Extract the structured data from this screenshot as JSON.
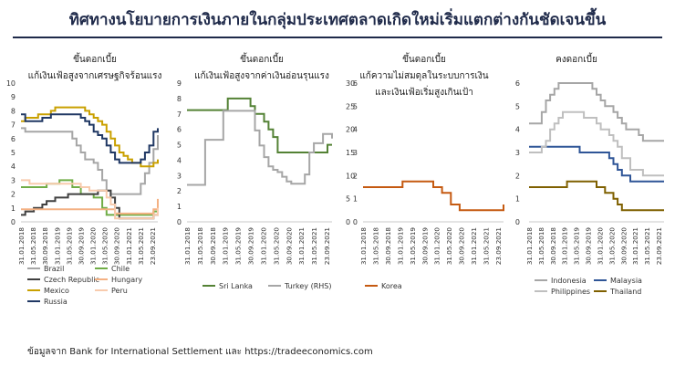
{
  "title": "ทิศทางนโยบายการเงินภายในกลุ่มประเทศตลาดเกิดใหม่เริ่มแตกต่างกันชัดเจนขึ้น",
  "source": "ข้อมูลจาก Bank for International Settlement และ https://tradeeconomics.com",
  "chart_data": [
    {
      "type": "line",
      "title": [
        "ขึ้นดอกเบี้ย",
        "แก้เงินเฟ้อสูงจากเศรษฐกิจร้อนแรง"
      ],
      "x_ticks": [
        "31.01.2018",
        "31.05.2018",
        "30.09.2018",
        "31.01.2019",
        "31.05.2019",
        "30.09.2019",
        "31.01.2020",
        "31.05.2020",
        "30.09.2020",
        "31.01.2021",
        "31.05.2021",
        "23.09.2021"
      ],
      "ylim": [
        0,
        10
      ],
      "yticks": [
        0,
        1,
        2,
        3,
        4,
        5,
        6,
        7,
        8,
        9,
        10
      ],
      "series": [
        {
          "name": "Brazil",
          "color": "#a6a6a6",
          "values": [
            6.75,
            6.5,
            6.5,
            6.5,
            6.5,
            6.5,
            6.5,
            6.5,
            6.5,
            6.5,
            6.5,
            6.5,
            6.0,
            5.5,
            5.0,
            4.5,
            4.5,
            4.25,
            3.75,
            3.0,
            2.25,
            2.0,
            2.0,
            2.0,
            2.0,
            2.0,
            2.0,
            2.0,
            2.75,
            3.5,
            4.25,
            5.25,
            6.25
          ]
        },
        {
          "name": "Chile",
          "color": "#70ad47",
          "values": [
            2.5,
            2.5,
            2.5,
            2.5,
            2.5,
            2.5,
            2.75,
            2.75,
            2.75,
            3.0,
            3.0,
            3.0,
            2.5,
            2.5,
            2.0,
            2.0,
            2.0,
            1.75,
            1.75,
            1.0,
            0.5,
            0.5,
            0.5,
            0.5,
            0.5,
            0.5,
            0.5,
            0.5,
            0.5,
            0.5,
            0.5,
            0.75,
            1.5
          ]
        },
        {
          "name": "Czech Republic",
          "color": "#404040",
          "values": [
            0.5,
            0.75,
            0.75,
            1.0,
            1.0,
            1.25,
            1.5,
            1.5,
            1.75,
            1.75,
            1.75,
            2.0,
            2.0,
            2.0,
            2.0,
            2.0,
            2.0,
            2.0,
            2.25,
            2.25,
            2.25,
            1.75,
            1.0,
            0.25,
            0.25,
            0.25,
            0.25,
            0.25,
            0.25,
            0.25,
            0.25,
            0.5,
            0.75
          ]
        },
        {
          "name": "Hungary",
          "color": "#f4b183",
          "values": [
            0.9,
            0.9,
            0.9,
            0.9,
            0.9,
            0.9,
            0.9,
            0.9,
            0.9,
            0.9,
            0.9,
            0.9,
            0.9,
            0.9,
            0.9,
            0.9,
            0.9,
            0.9,
            0.9,
            0.9,
            0.9,
            0.9,
            0.6,
            0.6,
            0.6,
            0.6,
            0.6,
            0.6,
            0.6,
            0.6,
            0.6,
            0.9,
            1.65
          ]
        },
        {
          "name": "Mexico",
          "color": "#c9a000",
          "values": [
            7.25,
            7.5,
            7.5,
            7.5,
            7.75,
            7.75,
            7.75,
            8.0,
            8.25,
            8.25,
            8.25,
            8.25,
            8.25,
            8.25,
            8.25,
            8.0,
            7.75,
            7.5,
            7.25,
            7.0,
            6.5,
            6.0,
            5.5,
            5.0,
            4.75,
            4.5,
            4.25,
            4.25,
            4.0,
            4.0,
            4.0,
            4.25,
            4.5
          ]
        },
        {
          "name": "Peru",
          "color": "#f8cbad",
          "values": [
            3.0,
            3.0,
            2.75,
            2.75,
            2.75,
            2.75,
            2.75,
            2.75,
            2.75,
            2.75,
            2.75,
            2.75,
            2.75,
            2.75,
            2.5,
            2.5,
            2.25,
            2.25,
            2.25,
            2.25,
            1.75,
            1.25,
            0.25,
            0.25,
            0.25,
            0.25,
            0.25,
            0.25,
            0.25,
            0.25,
            0.25,
            0.5,
            1.0
          ]
        },
        {
          "name": "Russia",
          "color": "#203864",
          "values": [
            7.75,
            7.25,
            7.25,
            7.25,
            7.25,
            7.5,
            7.5,
            7.75,
            7.75,
            7.75,
            7.75,
            7.75,
            7.75,
            7.75,
            7.5,
            7.25,
            7.0,
            6.5,
            6.25,
            6.0,
            5.5,
            5.0,
            4.5,
            4.25,
            4.25,
            4.25,
            4.25,
            4.25,
            4.5,
            5.0,
            5.5,
            6.5,
            6.75
          ]
        }
      ],
      "legend_position": "bottom"
    },
    {
      "type": "line",
      "title": [
        "ขึ้นดอกเบี้ย",
        "แก้เงินเฟ้อสูงจากค่าเงินอ่อนรุนแรง"
      ],
      "x_ticks": [
        "31.01.2018",
        "31.05.2018",
        "30.09.2018",
        "31.01.2019",
        "31.05.2019",
        "30.09.2019",
        "31.01.2020",
        "31.05.2020",
        "30.09.2020",
        "31.01.2021",
        "31.05.2021",
        "23.09.2021"
      ],
      "ylim_left": [
        0,
        9
      ],
      "yticks_left": [
        0,
        1,
        2,
        3,
        4,
        5,
        6,
        7,
        8,
        9
      ],
      "ylim_right": [
        0,
        30
      ],
      "yticks_right": [
        0,
        5,
        10,
        15,
        20,
        25,
        30
      ],
      "series": [
        {
          "name": "Sri Lanka",
          "color": "#548235",
          "axis": "left",
          "values": [
            7.25,
            7.25,
            7.25,
            7.25,
            7.25,
            7.25,
            7.25,
            7.25,
            7.25,
            8.0,
            8.0,
            8.0,
            8.0,
            8.0,
            7.5,
            7.0,
            7.0,
            6.5,
            6.0,
            5.5,
            4.5,
            4.5,
            4.5,
            4.5,
            4.5,
            4.5,
            4.5,
            4.5,
            4.5,
            4.5,
            4.5,
            5.0,
            5.0
          ]
        },
        {
          "name": "Turkey (RHS)",
          "color": "#a6a6a6",
          "axis": "right",
          "values": [
            8.0,
            8.0,
            8.0,
            8.0,
            17.75,
            17.75,
            17.75,
            17.75,
            24.0,
            24.0,
            24.0,
            24.0,
            24.0,
            24.0,
            24.0,
            19.75,
            16.5,
            14.0,
            12.0,
            11.25,
            10.75,
            9.75,
            8.75,
            8.25,
            8.25,
            8.25,
            10.25,
            15.0,
            17.0,
            17.0,
            19.0,
            19.0,
            18.0
          ]
        }
      ],
      "legend_position": "bottom"
    },
    {
      "type": "line",
      "title": [
        "ขึ้นดอกเบี้ย",
        "แก้ความไม่สมดุลในระบบการเงิน",
        "และเงินเฟ้อเริ่มสูงเกินเป้า"
      ],
      "x_ticks": [
        "31.01.2018",
        "31.05.2018",
        "30.09.2018",
        "31.01.2019",
        "31.05.2019",
        "30.09.2019",
        "31.01.2020",
        "31.05.2020",
        "30.09.2020",
        "31.01.2021",
        "31.05.2021",
        "23.09.2021"
      ],
      "ylim": [
        0,
        6
      ],
      "yticks": [
        0,
        1,
        2,
        3,
        4,
        5,
        6
      ],
      "series": [
        {
          "name": "Korea",
          "color": "#c55a11",
          "values": [
            1.5,
            1.5,
            1.5,
            1.5,
            1.5,
            1.5,
            1.5,
            1.5,
            1.5,
            1.75,
            1.75,
            1.75,
            1.75,
            1.75,
            1.75,
            1.75,
            1.5,
            1.5,
            1.25,
            1.25,
            0.75,
            0.75,
            0.5,
            0.5,
            0.5,
            0.5,
            0.5,
            0.5,
            0.5,
            0.5,
            0.5,
            0.5,
            0.75
          ]
        }
      ],
      "legend_position": "bottom"
    },
    {
      "type": "line",
      "title": [
        "คงดอกเบี้ย"
      ],
      "x_ticks": [
        "31.01.2018",
        "31.05.2018",
        "30.09.2018",
        "31.01.2019",
        "31.05.2019",
        "30.09.2019",
        "31.01.2020",
        "31.05.2020",
        "30.09.2020",
        "31.01.2021",
        "31.05.2021",
        "23.09.2021"
      ],
      "ylim": [
        0,
        6
      ],
      "yticks": [
        0,
        1,
        2,
        3,
        4,
        5,
        6
      ],
      "series": [
        {
          "name": "Indonesia",
          "color": "#a6a6a6",
          "values": [
            4.25,
            4.25,
            4.25,
            4.75,
            5.25,
            5.5,
            5.75,
            6.0,
            6.0,
            6.0,
            6.0,
            6.0,
            6.0,
            6.0,
            6.0,
            5.75,
            5.5,
            5.25,
            5.0,
            5.0,
            4.75,
            4.5,
            4.25,
            4.0,
            4.0,
            4.0,
            3.75,
            3.5,
            3.5,
            3.5,
            3.5,
            3.5,
            3.5
          ]
        },
        {
          "name": "Malaysia",
          "color": "#2f5597",
          "values": [
            3.25,
            3.25,
            3.25,
            3.25,
            3.25,
            3.25,
            3.25,
            3.25,
            3.25,
            3.25,
            3.25,
            3.25,
            3.0,
            3.0,
            3.0,
            3.0,
            3.0,
            3.0,
            3.0,
            2.75,
            2.5,
            2.25,
            2.0,
            2.0,
            1.75,
            1.75,
            1.75,
            1.75,
            1.75,
            1.75,
            1.75,
            1.75,
            1.75
          ]
        },
        {
          "name": "Philippines",
          "color": "#bfbfbf",
          "values": [
            3.0,
            3.0,
            3.0,
            3.25,
            3.5,
            4.0,
            4.25,
            4.5,
            4.75,
            4.75,
            4.75,
            4.75,
            4.75,
            4.5,
            4.5,
            4.5,
            4.25,
            4.0,
            4.0,
            3.75,
            3.5,
            3.25,
            2.75,
            2.75,
            2.25,
            2.25,
            2.25,
            2.0,
            2.0,
            2.0,
            2.0,
            2.0,
            2.0
          ]
        },
        {
          "name": "Thailand",
          "color": "#7f6000",
          "values": [
            1.5,
            1.5,
            1.5,
            1.5,
            1.5,
            1.5,
            1.5,
            1.5,
            1.5,
            1.75,
            1.75,
            1.75,
            1.75,
            1.75,
            1.75,
            1.75,
            1.5,
            1.5,
            1.25,
            1.25,
            1.0,
            0.75,
            0.5,
            0.5,
            0.5,
            0.5,
            0.5,
            0.5,
            0.5,
            0.5,
            0.5,
            0.5,
            0.5
          ]
        }
      ],
      "legend_position": "bottom"
    }
  ]
}
